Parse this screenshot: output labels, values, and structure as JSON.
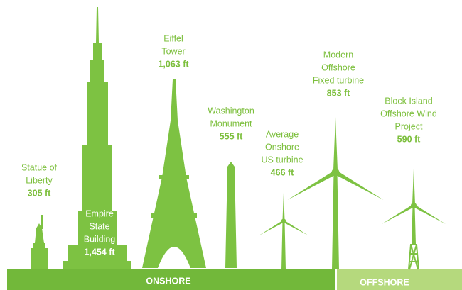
{
  "items": [
    {
      "lines": [
        "Statue of",
        "Liberty"
      ],
      "height": "305 ft"
    },
    {
      "lines": [
        "Empire",
        "State",
        "Building"
      ],
      "height": "1,454 ft"
    },
    {
      "lines": [
        "Eiffel",
        "Tower"
      ],
      "height": "1,063 ft"
    },
    {
      "lines": [
        "Washington",
        "Monument"
      ],
      "height": "555 ft"
    },
    {
      "lines": [
        "Average",
        "Onshore",
        "US turbine"
      ],
      "height": "466 ft"
    },
    {
      "lines": [
        "Modern",
        "Offshore",
        "Fixed turbine"
      ],
      "height": "853 ft"
    },
    {
      "lines": [
        "Block Island",
        "Offshore Wind",
        "Project"
      ],
      "height": "590 ft"
    }
  ],
  "ground": {
    "onshore": "ONSHORE",
    "offshore": "OFFSHORE"
  }
}
